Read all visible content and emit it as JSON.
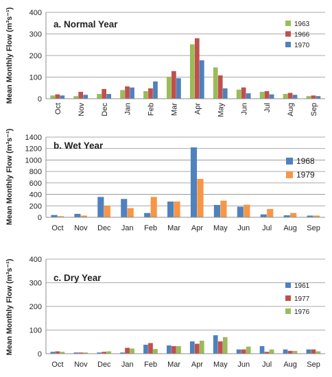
{
  "chart_data": [
    {
      "type": "bar",
      "title": "a. Normal Year",
      "ylabel": "Mean Monthly Flow (m³s⁻¹)",
      "ylim": [
        0,
        400
      ],
      "yticks": [
        0,
        100,
        200,
        300,
        400
      ],
      "categories": [
        "Oct",
        "Nov",
        "Dec",
        "Jan",
        "Feb",
        "Mar",
        "Apr",
        "May",
        "Jun",
        "Jul",
        "Aug",
        "Sep"
      ],
      "x_tick_rotation": "rotated",
      "grid": true,
      "legend_position": "top-right",
      "series": [
        {
          "name": "1963",
          "color": "#9bbb59",
          "values": [
            15,
            12,
            22,
            40,
            35,
            102,
            252,
            145,
            42,
            32,
            22,
            12
          ]
        },
        {
          "name": "1966",
          "color": "#c0504d",
          "values": [
            20,
            32,
            45,
            57,
            48,
            128,
            280,
            108,
            52,
            35,
            27,
            15
          ]
        },
        {
          "name": "1970",
          "color": "#4f81bd",
          "values": [
            15,
            18,
            22,
            52,
            80,
            95,
            178,
            48,
            25,
            20,
            18,
            12
          ]
        }
      ]
    },
    {
      "type": "bar",
      "title": "b. Wet Year",
      "ylabel": "Mean Monthly Flow (m³s⁻¹)",
      "ylim": [
        0,
        1400
      ],
      "yticks": [
        0,
        200,
        400,
        600,
        800,
        1000,
        1200,
        1400
      ],
      "categories": [
        "Oct",
        "Nov",
        "Dec",
        "Jan",
        "Feb",
        "Mar",
        "Apr",
        "May",
        "Jun",
        "Jul",
        "Aug",
        "Sep"
      ],
      "grid": true,
      "legend_position": "right",
      "series": [
        {
          "name": "1968",
          "color": "#4f81bd",
          "values": [
            40,
            60,
            355,
            320,
            75,
            275,
            1220,
            215,
            185,
            50,
            35,
            30
          ]
        },
        {
          "name": "1979",
          "color": "#f79646",
          "values": [
            20,
            30,
            200,
            160,
            355,
            275,
            670,
            290,
            220,
            145,
            75,
            30
          ]
        }
      ]
    },
    {
      "type": "bar",
      "title": "c. Dry Year",
      "ylabel": "Mean Monthly Flow (m³s⁻¹)",
      "ylim": [
        0,
        400
      ],
      "yticks": [
        0,
        100,
        200,
        300,
        400
      ],
      "categories": [
        "Oct",
        "Nov",
        "Dec",
        "Jan",
        "Feb",
        "Mar",
        "Apr",
        "May",
        "Jun",
        "Jul",
        "Aug",
        "Sep"
      ],
      "grid": true,
      "legend_position": "right",
      "series": [
        {
          "name": "1961",
          "color": "#4f81bd",
          "values": [
            8,
            5,
            5,
            5,
            38,
            35,
            52,
            78,
            18,
            32,
            18,
            18
          ]
        },
        {
          "name": "1977",
          "color": "#c0504d",
          "values": [
            10,
            5,
            8,
            25,
            45,
            32,
            42,
            52,
            18,
            8,
            12,
            18
          ]
        },
        {
          "name": "1976",
          "color": "#9bbb59",
          "values": [
            8,
            5,
            10,
            22,
            20,
            32,
            55,
            70,
            30,
            18,
            12,
            10
          ]
        }
      ]
    }
  ]
}
